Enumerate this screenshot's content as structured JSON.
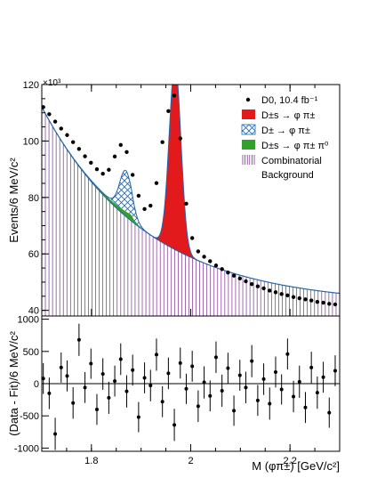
{
  "chart_data": [
    {
      "type": "line",
      "panel": "fit",
      "ylabel": "Events/6 MeV/c²",
      "yexponent": "×10³",
      "xlim": [
        1.7,
        2.3
      ],
      "ylim": [
        38,
        120
      ],
      "yticks": [
        "40",
        "60",
        "80",
        "100",
        "120"
      ],
      "legend_position": "top-right",
      "legend": [
        {
          "label": "D0, 10.4 fb⁻¹",
          "marker": "point",
          "color": "#000000"
        },
        {
          "label": "D±s → φ π±",
          "marker": "fill",
          "color": "#e31a1c"
        },
        {
          "label": "D± → φ π±",
          "marker": "hatch",
          "color": "#2166ac"
        },
        {
          "label": "D±s → φ π± π⁰",
          "marker": "fill",
          "color": "#33a02c"
        },
        {
          "label": "Combinatorial",
          "label2": "Background",
          "marker": "vlines",
          "color": "#7b2f8f"
        }
      ],
      "x": [
        1.703,
        1.715,
        1.727,
        1.739,
        1.751,
        1.763,
        1.775,
        1.787,
        1.799,
        1.811,
        1.823,
        1.835,
        1.847,
        1.859,
        1.871,
        1.883,
        1.895,
        1.907,
        1.919,
        1.931,
        1.943,
        1.955,
        1.967,
        1.979,
        1.991,
        2.003,
        2.015,
        2.027,
        2.039,
        2.051,
        2.063,
        2.075,
        2.087,
        2.099,
        2.111,
        2.123,
        2.135,
        2.147,
        2.159,
        2.171,
        2.183,
        2.195,
        2.207,
        2.219,
        2.231,
        2.243,
        2.255,
        2.267,
        2.279,
        2.291
      ],
      "series": [
        {
          "name": "D0, 10.4 fb⁻¹",
          "values": [
            112.0,
            109.5,
            106.9,
            104.4,
            102.1,
            99.6,
            97.2,
            94.6,
            92.3,
            90.0,
            88.4,
            89.8,
            94.5,
            98.6,
            96.1,
            88.0,
            80.6,
            75.9,
            77.1,
            85.1,
            99.6,
            110.6,
            116.1,
            100.9,
            77.8,
            65.6,
            60.9,
            59.0,
            57.4,
            55.9,
            54.6,
            53.4,
            52.3,
            51.3,
            50.3,
            49.3,
            48.5,
            47.8,
            47.0,
            46.4,
            45.8,
            45.3,
            44.7,
            44.3,
            43.9,
            43.5,
            43.0,
            42.7,
            42.3,
            42.1
          ]
        }
      ]
    },
    {
      "type": "scatter",
      "panel": "residual",
      "xlabel": "M (φπ±) [GeV/c²]",
      "ylabel": "(Data - Fit)/6 MeV/c²",
      "xlim": [
        1.7,
        2.3
      ],
      "ylim": [
        -1050,
        1050
      ],
      "xticks": [
        "1.8",
        "2",
        "2.2"
      ],
      "yticks": [
        "1000",
        "500",
        "0",
        "-500",
        "-1000"
      ],
      "x": [
        1.703,
        1.715,
        1.727,
        1.739,
        1.751,
        1.763,
        1.775,
        1.787,
        1.799,
        1.811,
        1.823,
        1.835,
        1.847,
        1.859,
        1.871,
        1.883,
        1.895,
        1.907,
        1.919,
        1.931,
        1.943,
        1.955,
        1.967,
        1.979,
        1.991,
        2.003,
        2.015,
        2.027,
        2.039,
        2.051,
        2.063,
        2.075,
        2.087,
        2.099,
        2.111,
        2.123,
        2.135,
        2.147,
        2.159,
        2.171,
        2.183,
        2.195,
        2.207,
        2.219,
        2.231,
        2.243,
        2.255,
        2.267,
        2.279,
        2.291
      ],
      "values": [
        80,
        -150,
        -780,
        250,
        120,
        -300,
        680,
        -60,
        310,
        -400,
        150,
        -220,
        40,
        380,
        -120,
        210,
        -520,
        90,
        -30,
        450,
        -280,
        160,
        -640,
        320,
        -80,
        270,
        -350,
        20,
        -190,
        410,
        -110,
        240,
        -420,
        130,
        -60,
        350,
        -260,
        70,
        -310,
        180,
        -90,
        460,
        -200,
        30,
        -370,
        250,
        -140,
        100,
        -450,
        200
      ],
      "error": [
        240,
        245,
        250,
        235,
        240,
        245,
        250,
        240,
        235,
        240,
        245,
        250,
        240,
        245,
        250,
        240,
        235,
        240,
        245,
        250,
        240,
        245,
        250,
        240,
        235,
        240,
        245,
        250,
        240,
        245,
        250,
        240,
        235,
        240,
        245,
        250,
        240,
        245,
        250,
        240,
        235,
        240,
        245,
        250,
        240,
        245,
        250,
        240,
        235,
        240
      ]
    }
  ]
}
